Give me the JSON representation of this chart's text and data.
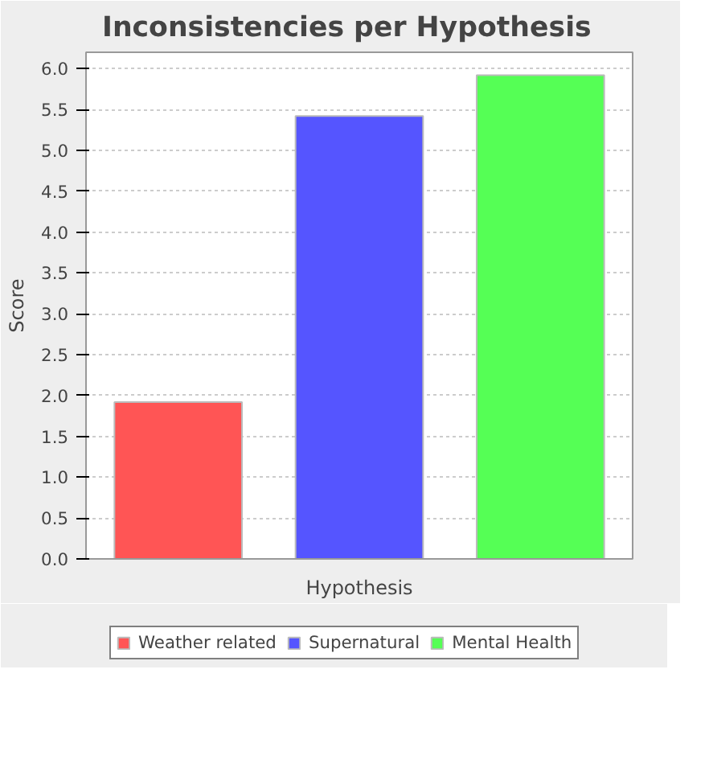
{
  "chart_data": {
    "type": "bar",
    "title": "Inconsistencies per Hypothesis",
    "xlabel": "Hypothesis",
    "ylabel": "Score",
    "categories": [
      null
    ],
    "series": [
      {
        "name": "Weather related",
        "color": "#ff5555",
        "values": [
          1.92
        ]
      },
      {
        "name": "Supernatural",
        "color": "#5555ff",
        "values": [
          5.42
        ]
      },
      {
        "name": "Mental Health",
        "color": "#55ff55",
        "values": [
          5.92
        ]
      }
    ],
    "ylim": [
      0,
      6.2
    ],
    "yticks": [
      {
        "value": 0,
        "label": "0.0"
      },
      {
        "value": 0.5,
        "label": "0.5"
      },
      {
        "value": 1,
        "label": "1.0"
      },
      {
        "value": 1.5,
        "label": "1.5"
      },
      {
        "value": 2,
        "label": "2.0"
      },
      {
        "value": 2.5,
        "label": "2.5"
      },
      {
        "value": 3,
        "label": "3.0"
      },
      {
        "value": 3.5,
        "label": "3.5"
      },
      {
        "value": 4,
        "label": "4.0"
      },
      {
        "value": 4.5,
        "label": "4.5"
      },
      {
        "value": 5,
        "label": "5.0"
      },
      {
        "value": 5.5,
        "label": "5.5"
      },
      {
        "value": 6,
        "label": "6.0"
      }
    ],
    "grid": "y",
    "legend": "bottom"
  }
}
